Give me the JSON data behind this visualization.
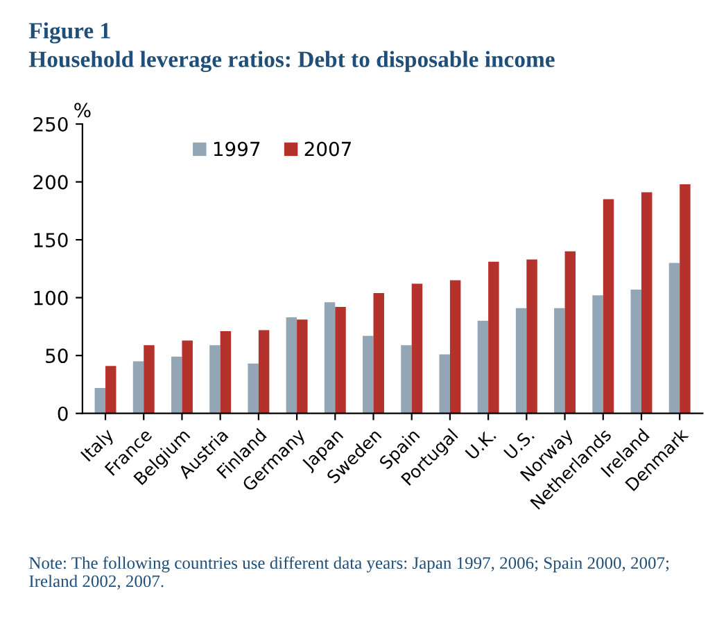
{
  "chart_data": {
    "type": "bar",
    "title": "Figure 1",
    "subtitle": "Household leverage ratios: Debt to disposable income",
    "ylabel": "%",
    "categories": [
      "Italy",
      "France",
      "Belgium",
      "Austria",
      "Finland",
      "Germany",
      "Japan",
      "Sweden",
      "Spain",
      "Portugal",
      "U.K.",
      "U.S.",
      "Norway",
      "Netherlands",
      "Ireland",
      "Denmark"
    ],
    "series": [
      {
        "name": "1997",
        "color": "#93a6b5",
        "values": [
          22,
          45,
          49,
          59,
          43,
          83,
          96,
          67,
          59,
          51,
          80,
          91,
          91,
          102,
          107,
          130
        ]
      },
      {
        "name": "2007",
        "color": "#b5312c",
        "values": [
          41,
          59,
          63,
          71,
          72,
          81,
          92,
          104,
          112,
          115,
          131,
          133,
          140,
          185,
          191,
          198
        ]
      }
    ],
    "ylim": [
      0,
      250
    ],
    "yticks": [
      0,
      50,
      100,
      150,
      200,
      250
    ],
    "grid": false,
    "legend": "top left",
    "annotations": [
      "Note: The following countries use different data years: Japan 1997, 2006; Spain 2000, 2007; Ireland 2002, 2007."
    ]
  }
}
